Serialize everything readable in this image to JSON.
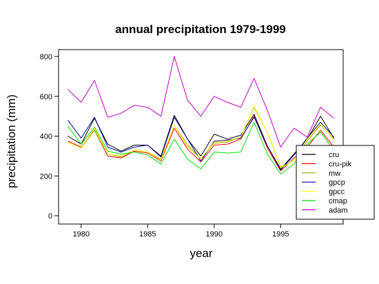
{
  "chart_data": {
    "type": "line",
    "title": "annual precipitation 1979-1999",
    "xlabel": "year",
    "ylabel": "precipitation (mm)",
    "xlim": [
      1978.3,
      1999.7
    ],
    "ylim": [
      0,
      800
    ],
    "x_ticks": [
      "1980",
      "1985",
      "1990",
      "1995"
    ],
    "y_ticks": [
      "0",
      "200",
      "400",
      "600",
      "800"
    ],
    "x": [
      1979,
      1980,
      1981,
      1982,
      1983,
      1984,
      1985,
      1986,
      1987,
      1988,
      1989,
      1990,
      1991,
      1992,
      1993,
      1994,
      1995,
      1996,
      1997,
      1998,
      1999
    ],
    "grid": false,
    "legend_position": "bottom-right",
    "series": [
      {
        "name": "cru",
        "color": "#000000",
        "values": [
          400,
          360,
          490,
          360,
          325,
          355,
          355,
          300,
          505,
          385,
          300,
          410,
          385,
          405,
          510,
          350,
          235,
          310,
          385,
          500,
          390
        ]
      },
      {
        "name": "cru-pik",
        "color": "#ff0000",
        "values": [
          375,
          345,
          430,
          300,
          290,
          325,
          315,
          275,
          440,
          335,
          270,
          355,
          360,
          385,
          500,
          340,
          225,
          290,
          345,
          430,
          345
        ]
      },
      {
        "name": "mw",
        "color": "#a89a00",
        "values": [
          370,
          340,
          430,
          310,
          295,
          330,
          320,
          285,
          455,
          355,
          285,
          365,
          370,
          395,
          545,
          420,
          245,
          280,
          375,
          455,
          385
        ]
      },
      {
        "name": "gpcp",
        "color": "#00008b",
        "values": [
          480,
          390,
          495,
          345,
          320,
          345,
          355,
          295,
          495,
          385,
          275,
          375,
          380,
          390,
          495,
          350,
          230,
          305,
          390,
          470,
          395
        ]
      },
      {
        "name": "gpcc",
        "color": "#ffff00",
        "values": [
          370,
          340,
          440,
          310,
          300,
          330,
          320,
          280,
          455,
          345,
          285,
          370,
          375,
          395,
          550,
          420,
          240,
          280,
          385,
          460,
          380
        ]
      },
      {
        "name": "cmap",
        "color": "#00dd00",
        "values": [
          450,
          360,
          445,
          325,
          310,
          320,
          305,
          260,
          385,
          285,
          235,
          320,
          315,
          320,
          470,
          310,
          210,
          260,
          360,
          420,
          330
        ]
      },
      {
        "name": "adam",
        "color": "#bb00bb",
        "values": [
          635,
          570,
          680,
          495,
          515,
          555,
          545,
          500,
          800,
          580,
          500,
          600,
          570,
          545,
          690,
          530,
          345,
          440,
          395,
          545,
          490
        ]
      }
    ]
  }
}
